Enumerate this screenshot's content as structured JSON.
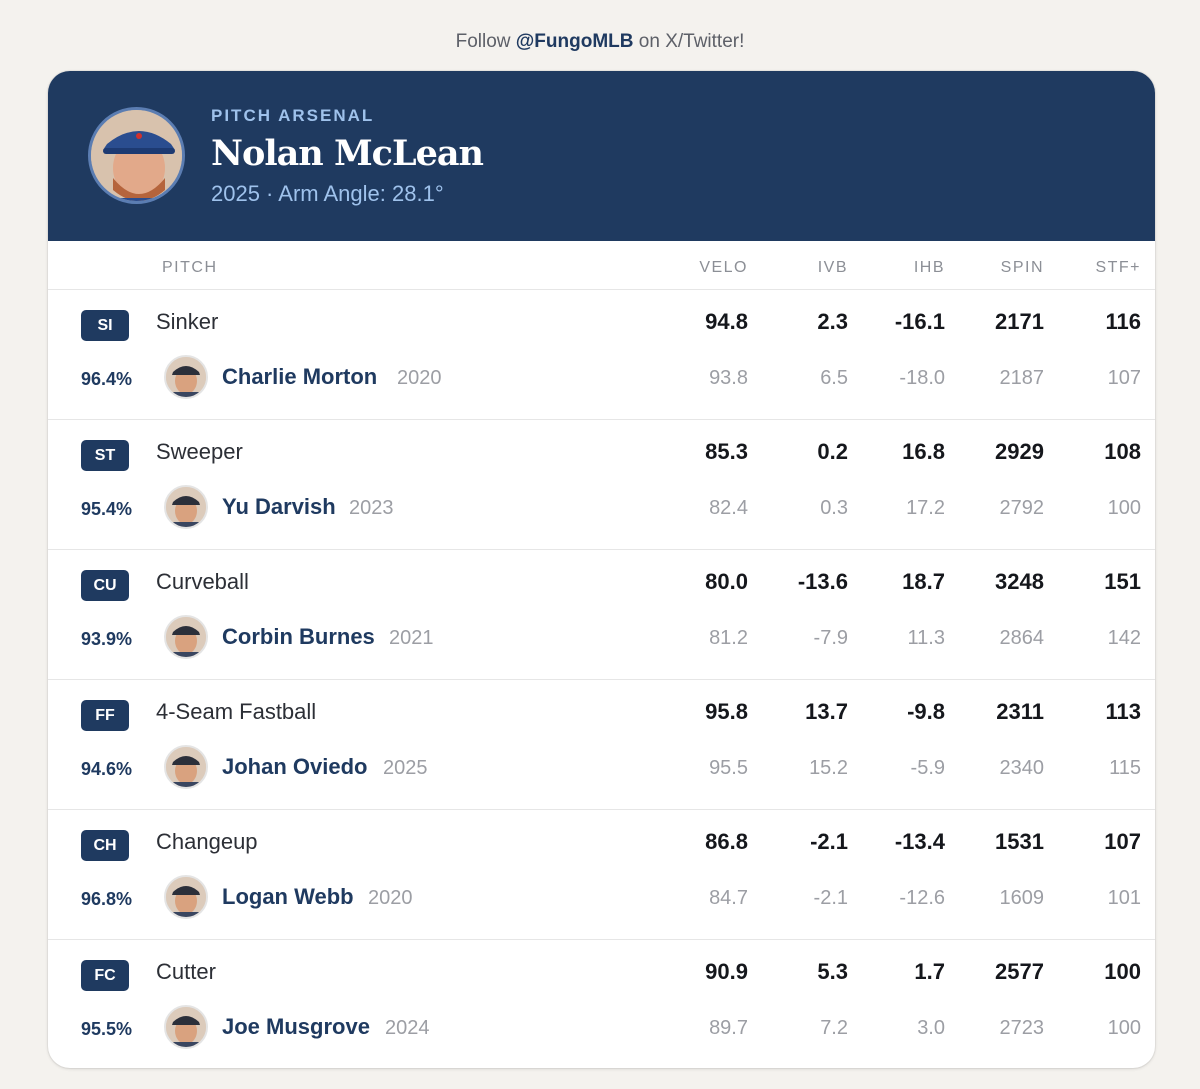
{
  "follow": {
    "prefix": "Follow",
    "handle": "@FungoMLB",
    "suffix": "on X/Twitter!"
  },
  "header": {
    "label": "PITCH ARSENAL",
    "name": "Nolan McLean",
    "subtitle": "2025 · Arm Angle: 28.1°"
  },
  "columns": {
    "pitch": "PITCH",
    "velo": "VELO",
    "ivb": "IVB",
    "ihb": "IHB",
    "spin": "SPIN",
    "stf": "STF+"
  },
  "pitches": [
    {
      "code": "SI",
      "name": "Sinker",
      "velo": "94.8",
      "ivb": "2.3",
      "ihb": "-16.1",
      "spin": "2171",
      "stf": "116",
      "match": {
        "pct": "96.4%",
        "player": "Charlie Morton",
        "year": "2020",
        "velo": "93.8",
        "ivb": "6.5",
        "ihb": "-18.0",
        "spin": "2187",
        "stf": "107"
      }
    },
    {
      "code": "ST",
      "name": "Sweeper",
      "velo": "85.3",
      "ivb": "0.2",
      "ihb": "16.8",
      "spin": "2929",
      "stf": "108",
      "match": {
        "pct": "95.4%",
        "player": "Yu Darvish",
        "year": "2023",
        "velo": "82.4",
        "ivb": "0.3",
        "ihb": "17.2",
        "spin": "2792",
        "stf": "100"
      }
    },
    {
      "code": "CU",
      "name": "Curveball",
      "velo": "80.0",
      "ivb": "-13.6",
      "ihb": "18.7",
      "spin": "3248",
      "stf": "151",
      "match": {
        "pct": "93.9%",
        "player": "Corbin Burnes",
        "year": "2021",
        "velo": "81.2",
        "ivb": "-7.9",
        "ihb": "11.3",
        "spin": "2864",
        "stf": "142"
      }
    },
    {
      "code": "FF",
      "name": "4-Seam Fastball",
      "velo": "95.8",
      "ivb": "13.7",
      "ihb": "-9.8",
      "spin": "2311",
      "stf": "113",
      "match": {
        "pct": "94.6%",
        "player": "Johan Oviedo",
        "year": "2025",
        "velo": "95.5",
        "ivb": "15.2",
        "ihb": "-5.9",
        "spin": "2340",
        "stf": "115"
      }
    },
    {
      "code": "CH",
      "name": "Changeup",
      "velo": "86.8",
      "ivb": "-2.1",
      "ihb": "-13.4",
      "spin": "1531",
      "stf": "107",
      "match": {
        "pct": "96.8%",
        "player": "Logan Webb",
        "year": "2020",
        "velo": "84.7",
        "ivb": "-2.1",
        "ihb": "-12.6",
        "spin": "1609",
        "stf": "101"
      }
    },
    {
      "code": "FC",
      "name": "Cutter",
      "velo": "90.9",
      "ivb": "5.3",
      "ihb": "1.7",
      "spin": "2577",
      "stf": "100",
      "match": {
        "pct": "95.5%",
        "player": "Joe Musgrove",
        "year": "2024",
        "velo": "89.7",
        "ivb": "7.2",
        "ihb": "3.0",
        "spin": "2723",
        "stf": "100"
      }
    }
  ],
  "colors": {
    "navy": "#1f3a60",
    "accent": "#9fc2ec"
  }
}
